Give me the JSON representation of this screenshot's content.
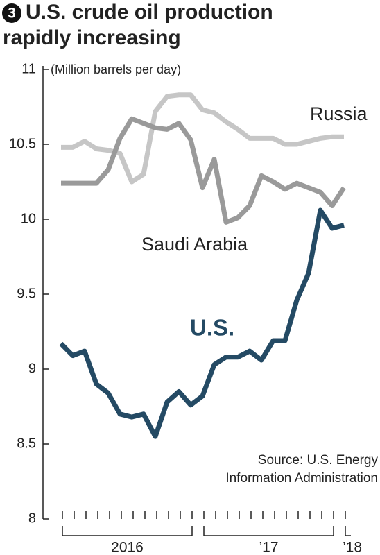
{
  "chart_data": {
    "type": "line",
    "number": "3",
    "title": [
      "U.S. crude oil production",
      "rapidly increasing"
    ],
    "y_label": "(Million barrels per day)",
    "source": [
      "Source: U.S. Energy",
      "Information Administration"
    ],
    "categories": [
      null,
      null,
      null,
      null,
      null,
      null,
      null,
      null,
      null,
      null,
      null,
      null,
      null,
      null,
      null,
      null,
      null,
      null,
      null,
      null,
      null,
      null,
      null,
      null,
      null
    ],
    "x_groups": [
      {
        "label": "2016",
        "months": 12
      },
      {
        "label": "’17",
        "months": 12
      },
      {
        "label": "’18",
        "months": 1
      }
    ],
    "ylim": [
      8,
      11
    ],
    "yticks": [
      8,
      8.5,
      9,
      9.5,
      10,
      10.5,
      11
    ],
    "series": [
      {
        "name": "Russia",
        "color": "#c6c6c6",
        "values": [
          10.48,
          10.48,
          10.52,
          10.47,
          10.46,
          10.44,
          10.25,
          10.3,
          10.72,
          10.82,
          10.83,
          10.83,
          10.73,
          10.71,
          10.65,
          10.6,
          10.54,
          10.54,
          10.54,
          10.5,
          10.5,
          10.52,
          10.54,
          10.55,
          10.55
        ]
      },
      {
        "name": "Saudi Arabia",
        "color": "#9a9a9a",
        "values": [
          10.24,
          10.24,
          10.24,
          10.24,
          10.33,
          10.54,
          10.67,
          10.64,
          10.61,
          10.6,
          10.64,
          10.53,
          10.21,
          10.4,
          9.98,
          10.01,
          10.09,
          10.29,
          10.25,
          10.2,
          10.24,
          10.21,
          10.18,
          10.09,
          10.21
        ]
      },
      {
        "name": "U.S.",
        "color": "#244a64",
        "values": [
          9.17,
          9.09,
          9.12,
          8.9,
          8.84,
          8.7,
          8.68,
          8.7,
          8.55,
          8.78,
          8.85,
          8.76,
          8.82,
          9.03,
          9.08,
          9.08,
          9.12,
          9.06,
          9.19,
          9.19,
          9.46,
          9.64,
          10.06,
          9.94,
          9.96
        ]
      }
    ]
  }
}
